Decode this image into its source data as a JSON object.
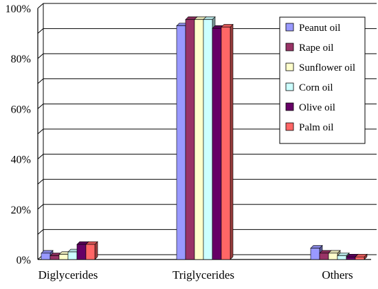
{
  "chart_data": {
    "type": "bar",
    "style": "3d-clustered-column",
    "categories": [
      "Diglycerides",
      "Triglycerides",
      "Others"
    ],
    "series": [
      {
        "name": "Peanut oil",
        "color": "#9999ff",
        "values": [
          2.5,
          93.0,
          4.5
        ]
      },
      {
        "name": "Rape oil",
        "color": "#993366",
        "values": [
          1.5,
          95.5,
          2.5
        ]
      },
      {
        "name": "Sunflower oil",
        "color": "#ffffcc",
        "values": [
          2.0,
          95.5,
          2.5
        ]
      },
      {
        "name": "Corn oil",
        "color": "#ccffff",
        "values": [
          3.0,
          95.5,
          1.5
        ]
      },
      {
        "name": "Olive oil",
        "color": "#660066",
        "values": [
          6.0,
          92.0,
          1.0
        ]
      },
      {
        "name": "Palm oil",
        "color": "#ff6666",
        "values": [
          6.0,
          92.5,
          1.0
        ]
      }
    ],
    "y_ticks": [
      "0%",
      "20%",
      "40%",
      "60%",
      "80%",
      "100%"
    ],
    "ylim": [
      0,
      100
    ],
    "y_unit": "%",
    "title": "",
    "xlabel": "",
    "ylabel": "",
    "grid": true,
    "legend_position": "top-right"
  }
}
